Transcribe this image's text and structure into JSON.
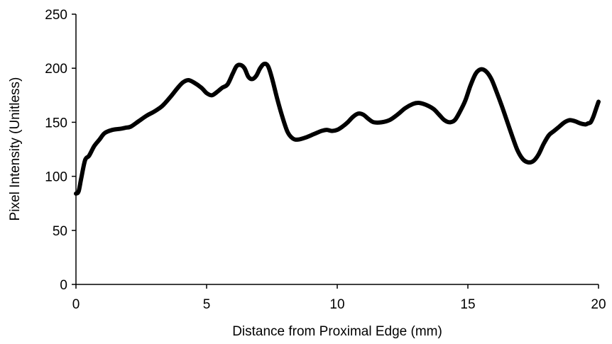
{
  "chart_data": {
    "type": "line",
    "title": "",
    "xlabel": "Distance from Proximal Edge (mm)",
    "ylabel": "Pixel Intensity (Unitless)",
    "xlim": [
      0,
      20
    ],
    "ylim": [
      0,
      250
    ],
    "xticks": [
      "0",
      "5",
      "10",
      "15",
      "20"
    ],
    "yticks": [
      "0",
      "50",
      "100",
      "150",
      "200",
      "250"
    ],
    "grid": false,
    "legend": "none",
    "series": [
      {
        "color": "#000000",
        "x": [
          0,
          0.1,
          0.2,
          0.35,
          0.5,
          0.7,
          0.9,
          1.1,
          1.4,
          1.7,
          1.9,
          2.1,
          2.4,
          2.7,
          3.0,
          3.3,
          3.6,
          3.9,
          4.1,
          4.3,
          4.5,
          4.8,
          5.0,
          5.2,
          5.4,
          5.6,
          5.8,
          6.0,
          6.15,
          6.3,
          6.45,
          6.6,
          6.75,
          6.9,
          7.05,
          7.2,
          7.35,
          7.5,
          7.7,
          7.9,
          8.1,
          8.3,
          8.5,
          8.8,
          9.1,
          9.4,
          9.6,
          9.8,
          10.0,
          10.2,
          10.4,
          10.6,
          10.8,
          11.0,
          11.2,
          11.4,
          11.7,
          12.0,
          12.3,
          12.6,
          12.9,
          13.1,
          13.3,
          13.5,
          13.7,
          13.9,
          14.1,
          14.3,
          14.5,
          14.7,
          14.9,
          15.1,
          15.3,
          15.5,
          15.7,
          15.9,
          16.1,
          16.3,
          16.5,
          16.7,
          16.9,
          17.1,
          17.3,
          17.5,
          17.7,
          17.9,
          18.1,
          18.3,
          18.5,
          18.7,
          18.9,
          19.1,
          19.3,
          19.5,
          19.6,
          19.7,
          19.8,
          19.9,
          20.0
        ],
        "y": [
          84,
          86,
          98,
          115,
          119,
          128,
          134,
          140,
          143,
          144,
          145,
          146,
          151,
          156,
          160,
          165,
          173,
          182,
          187,
          189,
          187,
          182,
          177,
          175,
          178,
          182,
          185,
          195,
          202,
          203,
          200,
          192,
          190,
          193,
          200,
          204,
          202,
          191,
          172,
          155,
          141,
          135,
          134,
          136,
          139,
          142,
          143,
          142,
          143,
          146,
          150,
          155,
          158,
          157,
          153,
          150,
          150,
          152,
          157,
          163,
          167,
          168,
          167,
          165,
          162,
          157,
          152,
          150,
          152,
          160,
          170,
          184,
          195,
          199,
          197,
          190,
          178,
          165,
          151,
          137,
          124,
          116,
          113,
          114,
          120,
          130,
          138,
          142,
          146,
          150,
          152,
          151,
          149,
          148,
          149,
          150,
          155,
          162,
          169
        ]
      }
    ]
  }
}
